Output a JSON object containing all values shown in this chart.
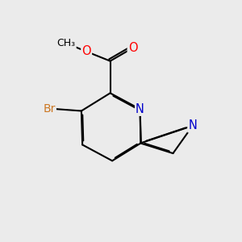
{
  "background_color": "#ebebeb",
  "bond_color": "#000000",
  "bond_width": 1.5,
  "atom_colors": {
    "N": "#0000cc",
    "O": "#ff0000",
    "Br": "#cc7722",
    "C": "#000000"
  },
  "font_size": 9.5,
  "fig_size": [
    3.0,
    3.0
  ],
  "dpi": 100
}
